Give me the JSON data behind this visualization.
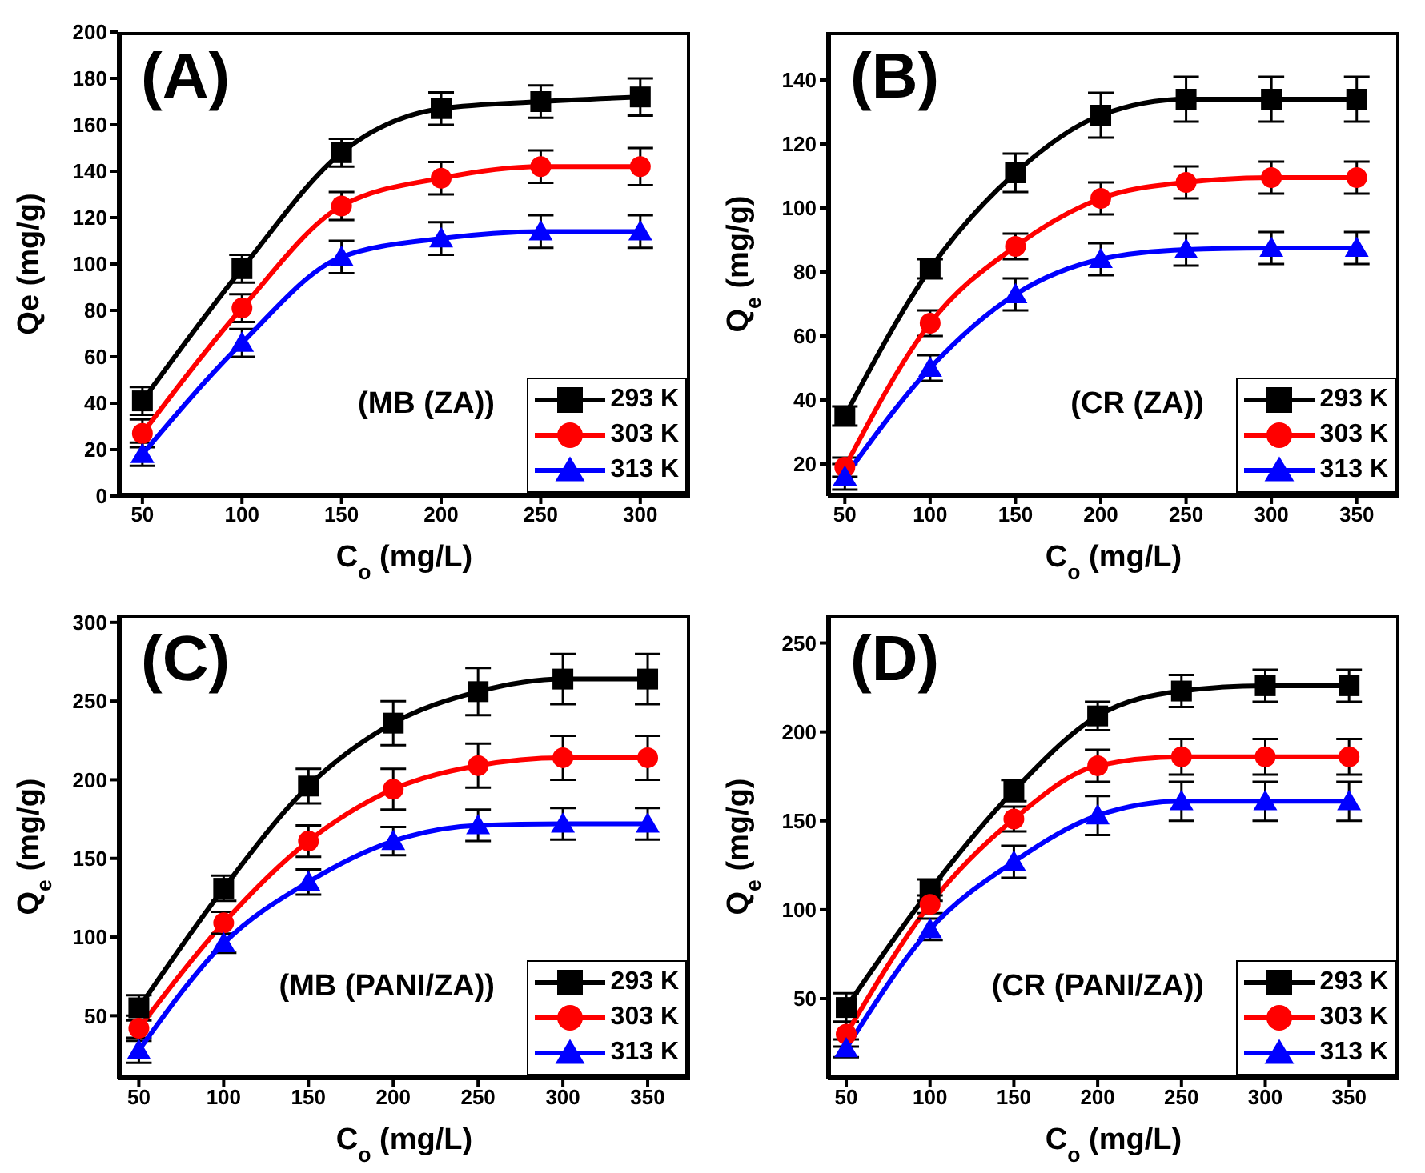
{
  "chart_data": [
    {
      "type": "line",
      "xlabel": "C$_{o}$ (mg/L)",
      "ylabel": "Qe (mg/g)",
      "x": [
        50,
        100,
        150,
        200,
        250,
        300
      ],
      "xlim": [
        38,
        325
      ],
      "xticks": [
        50,
        100,
        150,
        200,
        250,
        300
      ],
      "ylim": [
        0,
        200
      ],
      "yticks": [
        0,
        20,
        40,
        60,
        80,
        100,
        120,
        140,
        160,
        180,
        200
      ],
      "legend": "bottom right",
      "grid": false,
      "annotations": [
        "(A)",
        "(MB (ZA))"
      ],
      "series": [
        {
          "name": "293 K",
          "color": "#000000",
          "marker": "square",
          "values": [
            41,
            98,
            148,
            167,
            170,
            172
          ],
          "errors": [
            6,
            6,
            6,
            7,
            7,
            8
          ]
        },
        {
          "name": "303 K",
          "color": "#ff0000",
          "marker": "circle",
          "values": [
            27,
            81,
            125,
            137,
            142,
            142
          ],
          "errors": [
            6,
            6,
            6,
            7,
            7,
            8
          ]
        },
        {
          "name": "313 K",
          "color": "#0000ff",
          "marker": "triangle",
          "values": [
            18,
            66,
            103,
            111,
            114,
            114
          ],
          "errors": [
            5,
            6,
            7,
            7,
            7,
            7
          ]
        }
      ]
    },
    {
      "type": "line",
      "xlabel": "C$_{o}$ (mg/L)",
      "ylabel": "Q$_{e}$ (mg/g)",
      "x": [
        50,
        100,
        150,
        200,
        250,
        300,
        350
      ],
      "xlim": [
        40,
        375
      ],
      "xticks": [
        50,
        100,
        150,
        200,
        250,
        300,
        350
      ],
      "ylim": [
        10,
        155
      ],
      "yticks": [
        20,
        40,
        60,
        80,
        100,
        120,
        140
      ],
      "legend": "bottom right",
      "grid": false,
      "annotations": [
        "(B)",
        "(CR (ZA))"
      ],
      "series": [
        {
          "name": "293 K",
          "color": "#000000",
          "marker": "square",
          "values": [
            35,
            81,
            111,
            129,
            134,
            134,
            134
          ],
          "errors": [
            3,
            3,
            6,
            7,
            7,
            7,
            7
          ]
        },
        {
          "name": "303 K",
          "color": "#ff0000",
          "marker": "circle",
          "values": [
            19,
            64,
            88,
            103,
            108,
            109.5,
            109.5
          ],
          "errors": [
            3,
            4,
            4,
            5,
            5,
            5,
            5
          ]
        },
        {
          "name": "313 K",
          "color": "#0000ff",
          "marker": "triangle",
          "values": [
            16,
            50,
            73,
            84,
            87,
            87.5,
            87.5
          ],
          "errors": [
            4,
            4,
            5,
            5,
            5,
            5,
            5
          ]
        }
      ]
    },
    {
      "type": "line",
      "xlabel": "C$_{o}$ (mg/L)",
      "ylabel": "Q$_{e}$ (mg/g)",
      "x": [
        50,
        100,
        150,
        200,
        250,
        300,
        350
      ],
      "xlim": [
        38,
        375
      ],
      "xticks": [
        50,
        100,
        150,
        200,
        250,
        300,
        350
      ],
      "ylim": [
        10,
        305
      ],
      "yticks": [
        50,
        100,
        150,
        200,
        250,
        300
      ],
      "legend": "bottom right",
      "grid": false,
      "annotations": [
        "(C)",
        "(MB (PANI/ZA))"
      ],
      "series": [
        {
          "name": "293 K",
          "color": "#000000",
          "marker": "square",
          "values": [
            55,
            131,
            196,
            236,
            256,
            264,
            264
          ],
          "errors": [
            8,
            8,
            11,
            14,
            15,
            16,
            16
          ]
        },
        {
          "name": "303 K",
          "color": "#ff0000",
          "marker": "circle",
          "values": [
            42,
            109,
            161,
            194,
            209,
            214,
            214
          ],
          "errors": [
            8,
            7,
            10,
            13,
            14,
            14,
            14
          ]
        },
        {
          "name": "313 K",
          "color": "#0000ff",
          "marker": "triangle",
          "values": [
            28,
            96,
            135,
            161,
            171,
            172,
            172
          ],
          "errors": [
            8,
            6,
            8,
            9,
            10,
            10,
            10
          ]
        }
      ]
    },
    {
      "type": "line",
      "xlabel": "C$_{o}$ (mg/L)",
      "ylabel": "Q$_{e}$ (mg/g)",
      "x": [
        50,
        100,
        150,
        200,
        250,
        300,
        350
      ],
      "xlim": [
        39,
        380
      ],
      "xticks": [
        50,
        100,
        150,
        200,
        250,
        300,
        350
      ],
      "ylim": [
        5,
        266
      ],
      "yticks": [
        50,
        100,
        150,
        200,
        250
      ],
      "legend": "bottom right",
      "grid": false,
      "annotations": [
        "(D)",
        "(CR (PANI/ZA))"
      ],
      "series": [
        {
          "name": "293 K",
          "color": "#000000",
          "marker": "square",
          "values": [
            45,
            111,
            167,
            209,
            223,
            226,
            226
          ],
          "errors": [
            8,
            6,
            6,
            8,
            9,
            9,
            9
          ]
        },
        {
          "name": "303 K",
          "color": "#ff0000",
          "marker": "circle",
          "values": [
            30,
            103,
            151,
            181,
            186,
            186,
            186
          ],
          "errors": [
            7,
            5,
            7,
            9,
            10,
            10,
            10
          ]
        },
        {
          "name": "313 K",
          "color": "#0000ff",
          "marker": "triangle",
          "values": [
            22,
            89,
            127,
            153,
            161,
            161,
            161
          ],
          "errors": [
            5,
            6,
            9,
            11,
            11,
            11,
            11
          ]
        }
      ]
    }
  ]
}
